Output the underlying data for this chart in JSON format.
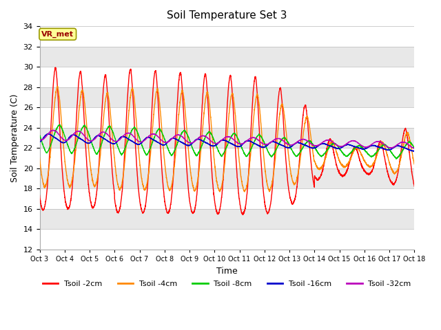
{
  "title": "Soil Temperature Set 3",
  "xlabel": "Time",
  "ylabel": "Soil Temperature (C)",
  "ylim": [
    12,
    34
  ],
  "xlim": [
    0,
    15
  ],
  "annotation": "VR_met",
  "annotation_color": "#990000",
  "annotation_bg": "#ffff99",
  "annotation_edge": "#999900",
  "legend_labels": [
    "Tsoil -2cm",
    "Tsoil -4cm",
    "Tsoil -8cm",
    "Tsoil -16cm",
    "Tsoil -32cm"
  ],
  "line_colors": [
    "#ff0000",
    "#ff8800",
    "#00cc00",
    "#0000cc",
    "#bb00bb"
  ],
  "x_tick_labels": [
    "Oct 3",
    "Oct 4",
    "Oct 5",
    "Oct 6",
    "Oct 7",
    "Oct 8",
    "Oct 9",
    "Oct 10",
    "Oct 11",
    "Oct 12",
    "Oct 13",
    "Oct 14",
    "Oct 15",
    "Oct 16",
    "Oct 17",
    "Oct 18"
  ],
  "background_color": "#ffffff",
  "band_colors": [
    "#ffffff",
    "#e8e8e8"
  ]
}
